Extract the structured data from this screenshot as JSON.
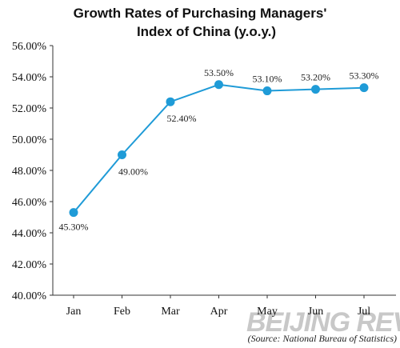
{
  "chart_data": {
    "type": "line",
    "title_lines": [
      "Growth Rates of Purchasing Managers'",
      "Index of China (y.o.y.)"
    ],
    "categories": [
      "Jan",
      "Feb",
      "Mar",
      "Apr",
      "May",
      "Jun",
      "Jul"
    ],
    "series": [
      {
        "values": [
          45.3,
          49.0,
          52.4,
          53.5,
          53.1,
          53.2,
          53.3
        ],
        "labels": [
          "45.30%",
          "49.00%",
          "52.40%",
          "53.50%",
          "53.10%",
          "53.20%",
          "53.30%"
        ],
        "color": "#1f9bd7"
      }
    ],
    "ylim": [
      40,
      56
    ],
    "y_ticks": [
      40,
      42,
      44,
      46,
      48,
      50,
      52,
      54,
      56
    ],
    "y_tick_labels": [
      "40.00%",
      "42.00%",
      "44.00%",
      "46.00%",
      "48.00%",
      "50.00%",
      "52.00%",
      "54.00%",
      "56.00%"
    ],
    "xlabel": "",
    "ylabel": "",
    "grid": false,
    "legend": "none",
    "source_note": "(Source: National Bureau of Statistics)"
  },
  "watermark": "BEIJING REVIEW"
}
